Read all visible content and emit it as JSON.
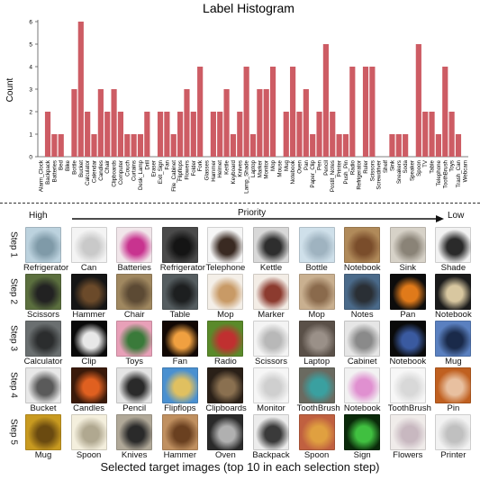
{
  "chart_data": {
    "type": "bar",
    "title": "Label Histogram",
    "xlabel": "",
    "ylabel": "Count",
    "ylim": [
      0,
      6
    ],
    "yticks": [
      0,
      1,
      2,
      3,
      4,
      5,
      6
    ],
    "bar_color": "#cd5c64",
    "categories": [
      "Alarm_Clock",
      "Backpack",
      "Batteries",
      "Bed",
      "Bike",
      "Bottle",
      "Bucket",
      "Calculator",
      "Calendar",
      "Candles",
      "Chair",
      "Clipboards",
      "Computer",
      "Couch",
      "Curtains",
      "Desk_Lamp",
      "Drill",
      "Eraser",
      "Exit_Sign",
      "Fan",
      "File_Cabinet",
      "Flipflops",
      "Flowers",
      "Folder",
      "Fork",
      "Glasses",
      "Hammer",
      "Helmet",
      "Kettle",
      "Keyboard",
      "Knives",
      "Lamp_Shade",
      "Laptop",
      "Marker",
      "Monitor",
      "Mop",
      "Mouse",
      "Mug",
      "Notebook",
      "Oven",
      "Pan",
      "Paper_Clip",
      "Pen",
      "Pencil",
      "Postit_Notes",
      "Printer",
      "Push_Pin",
      "Radio",
      "Refrigerator",
      "Ruler",
      "Scissors",
      "Screwdriver",
      "Shelf",
      "Sink",
      "Sneakers",
      "Soda",
      "Speaker",
      "Spoon",
      "TV",
      "Table",
      "Telephone",
      "ToothBrush",
      "Toys",
      "Trash_Can",
      "Webcam"
    ],
    "values": [
      0,
      2,
      1,
      1,
      0,
      3,
      6,
      2,
      1,
      3,
      2,
      3,
      2,
      1,
      1,
      1,
      2,
      0,
      2,
      2,
      1,
      2,
      3,
      2,
      4,
      0,
      2,
      2,
      3,
      1,
      2,
      4,
      1,
      3,
      3,
      4,
      0,
      2,
      4,
      2,
      3,
      1,
      2,
      5,
      2,
      1,
      1,
      4,
      0,
      4,
      4,
      0,
      0,
      1,
      1,
      1,
      0,
      5,
      2,
      2,
      1,
      4,
      2,
      1,
      0
    ]
  },
  "grid": {
    "priority_label": "Priority",
    "high_label": "High",
    "low_label": "Low",
    "caption": "Selected target images (top 10 in each selection step)",
    "steps": [
      {
        "label": "Step 1",
        "items": [
          {
            "name": "Refrigerator",
            "colors": [
              "#bcd2de",
              "#7f9aa8"
            ]
          },
          {
            "name": "Can",
            "colors": [
              "#f4f4f4",
              "#c9c9c9"
            ]
          },
          {
            "name": "Batteries",
            "colors": [
              "#f1e6ea",
              "#c8338f"
            ]
          },
          {
            "name": "Refrigerator",
            "colors": [
              "#4a4a4a",
              "#141414"
            ]
          },
          {
            "name": "Telephone",
            "colors": [
              "#f6f6f6",
              "#3a2a22"
            ]
          },
          {
            "name": "Kettle",
            "colors": [
              "#d8d8d8",
              "#2e2e2e"
            ]
          },
          {
            "name": "Bottle",
            "colors": [
              "#cfe0ea",
              "#9fb3c0"
            ]
          },
          {
            "name": "Notebook",
            "colors": [
              "#b08a5a",
              "#7a4d2b"
            ]
          },
          {
            "name": "Sink",
            "colors": [
              "#d7d2c8",
              "#8a8377"
            ]
          },
          {
            "name": "Shade",
            "colors": [
              "#f2f2f2",
              "#2a2a2a"
            ]
          }
        ]
      },
      {
        "label": "Step 2",
        "items": [
          {
            "name": "Scissors",
            "colors": [
              "#5b6f3e",
              "#222222"
            ]
          },
          {
            "name": "Hammer",
            "colors": [
              "#151515",
              "#6b4a2a"
            ]
          },
          {
            "name": "Chair",
            "colors": [
              "#a08860",
              "#5c4a34"
            ]
          },
          {
            "name": "Table",
            "colors": [
              "#555d60",
              "#1d1f20"
            ]
          },
          {
            "name": "Mop",
            "colors": [
              "#f4efe8",
              "#c89a66"
            ]
          },
          {
            "name": "Marker",
            "colors": [
              "#f3ede6",
              "#8c3b2f"
            ]
          },
          {
            "name": "Mop",
            "colors": [
              "#c9b090",
              "#8a6a4c"
            ]
          },
          {
            "name": "Notes",
            "colors": [
              "#4a6a8a",
              "#2a2f35"
            ]
          },
          {
            "name": "Pan",
            "colors": [
              "#0c0c0c",
              "#e07a1a"
            ]
          },
          {
            "name": "Notebook",
            "colors": [
              "#1b1b1b",
              "#d8c7a0"
            ]
          }
        ]
      },
      {
        "label": "Step 3",
        "items": [
          {
            "name": "Calculator",
            "colors": [
              "#6a6f70",
              "#2b2d2e"
            ]
          },
          {
            "name": "Clip",
            "colors": [
              "#0a0a0a",
              "#e8e8e8"
            ]
          },
          {
            "name": "Toys",
            "colors": [
              "#e8a0b8",
              "#3a7a3a"
            ]
          },
          {
            "name": "Fan",
            "colors": [
              "#120804",
              "#f0a040"
            ]
          },
          {
            "name": "Radio",
            "colors": [
              "#5a8a2a",
              "#c03030"
            ]
          },
          {
            "name": "Scissors",
            "colors": [
              "#f4f4f4",
              "#b8b8b8"
            ]
          },
          {
            "name": "Laptop",
            "colors": [
              "#5a5048",
              "#9a9088"
            ]
          },
          {
            "name": "Cabinet",
            "colors": [
              "#e6e6e6",
              "#8a8a8a"
            ]
          },
          {
            "name": "Notebook",
            "colors": [
              "#0a0a0a",
              "#3a5aa0"
            ]
          },
          {
            "name": "Mug",
            "colors": [
              "#5a80c0",
              "#1a2a4a"
            ]
          }
        ]
      },
      {
        "label": "Step 4",
        "items": [
          {
            "name": "Bucket",
            "colors": [
              "#e8e8e8",
              "#5a5a5a"
            ]
          },
          {
            "name": "Candles",
            "colors": [
              "#3a1a0a",
              "#e06020"
            ]
          },
          {
            "name": "Pencil",
            "colors": [
              "#e4e4e4",
              "#2a2a2a"
            ]
          },
          {
            "name": "Flipflops",
            "colors": [
              "#4a90d0",
              "#e0c060"
            ]
          },
          {
            "name": "Clipboards",
            "colors": [
              "#2a2018",
              "#8a7050"
            ]
          },
          {
            "name": "Monitor",
            "colors": [
              "#f6f6f6",
              "#cfcfcf"
            ]
          },
          {
            "name": "ToothBrush",
            "colors": [
              "#6a6a60",
              "#3aa0a0"
            ]
          },
          {
            "name": "Notebook",
            "colors": [
              "#f2f2f2",
              "#e090d0"
            ]
          },
          {
            "name": "ToothBrush",
            "colors": [
              "#f7f7f7",
              "#d8d8d8"
            ]
          },
          {
            "name": "Pin",
            "colors": [
              "#c06020",
              "#e8c0a0"
            ]
          }
        ]
      },
      {
        "label": "Step 5",
        "items": [
          {
            "name": "Mug",
            "colors": [
              "#c89a20",
              "#6a4a10"
            ]
          },
          {
            "name": "Spoon",
            "colors": [
              "#f4efdd",
              "#b0a890"
            ]
          },
          {
            "name": "Knives",
            "colors": [
              "#b0a898",
              "#2a2a2a"
            ]
          },
          {
            "name": "Hammer",
            "colors": [
              "#c09060",
              "#6a4020"
            ]
          },
          {
            "name": "Oven",
            "colors": [
              "#2a2a2a",
              "#b0b0b0"
            ]
          },
          {
            "name": "Backpack",
            "colors": [
              "#ececec",
              "#3a3a3a"
            ]
          },
          {
            "name": "Spoon",
            "colors": [
              "#c06040",
              "#e0a040"
            ]
          },
          {
            "name": "Sign",
            "colors": [
              "#0a2a0a",
              "#40c040"
            ]
          },
          {
            "name": "Flowers",
            "colors": [
              "#f0ecea",
              "#c8b8c0"
            ]
          },
          {
            "name": "Printer",
            "colors": [
              "#f2f2f2",
              "#c0c0c0"
            ]
          }
        ]
      }
    ]
  }
}
